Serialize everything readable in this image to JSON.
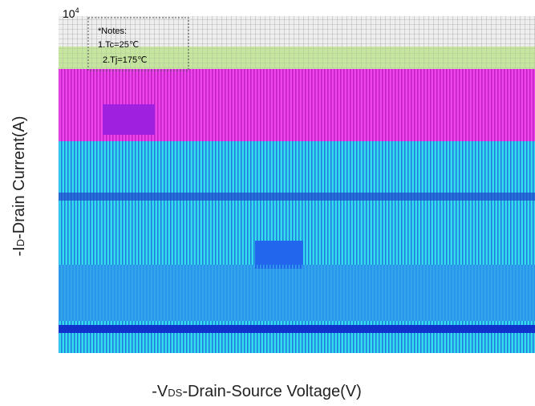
{
  "corner_tick": {
    "base": "10",
    "exp": "4"
  },
  "notes": {
    "title": "*Notes:",
    "items": [
      "1.Tc=25℃",
      "2.Tj=175℃"
    ]
  },
  "y_label": {
    "prefix": "-I",
    "sub": "D",
    "rest": "-Drain Current(A)"
  },
  "x_label": {
    "prefix": "-V",
    "sub": "DS",
    "rest": "-Drain-Source Voltage(V)"
  }
}
